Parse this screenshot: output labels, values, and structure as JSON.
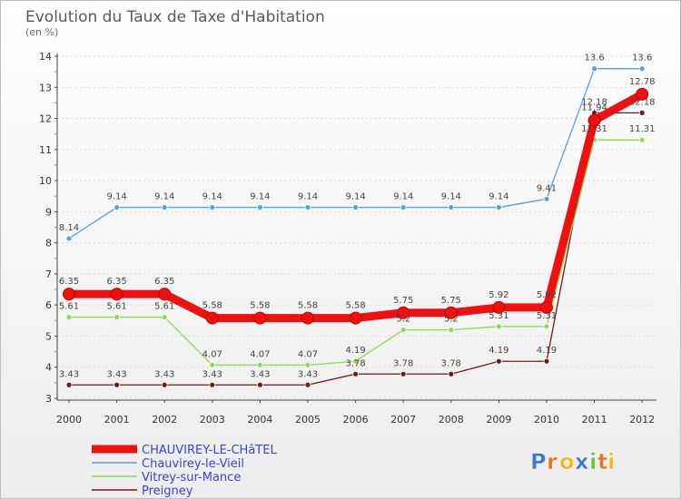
{
  "chart_data": {
    "type": "line",
    "title": "Evolution du Taux de Taxe d'Habitation",
    "ylabel": "(en %)",
    "xlabel": "",
    "ylim": [
      3,
      14
    ],
    "yticks": [
      "3",
      "4",
      "5",
      "6",
      "7",
      "8",
      "9",
      "10",
      "11",
      "12",
      "13",
      "14"
    ],
    "categories": [
      "2000",
      "2001",
      "2002",
      "2003",
      "2004",
      "2005",
      "2006",
      "2007",
      "2008",
      "2009",
      "2010",
      "2011",
      "2012"
    ],
    "series": [
      {
        "name": "Preigney",
        "color": "#6b1d1d",
        "values": [
          3.43,
          3.43,
          3.43,
          3.43,
          3.43,
          3.43,
          3.78,
          3.78,
          3.78,
          4.19,
          4.19,
          12.18,
          12.18
        ],
        "labels": [
          "3.43",
          "3.43",
          "3.43",
          "3.43",
          "3.43",
          "3.43",
          "3.78",
          "3.78",
          "3.78",
          "4.19",
          "4.19",
          "12.18",
          "12.18"
        ]
      },
      {
        "name": "Vitrey-sur-Mance",
        "color": "#8fd65a",
        "values": [
          5.61,
          5.61,
          5.61,
          4.07,
          4.07,
          4.07,
          4.19,
          5.2,
          5.2,
          5.31,
          5.31,
          11.31,
          11.31
        ],
        "labels": [
          "5.61",
          "5.61",
          "5.61",
          "4.07",
          "4.07",
          "4.07",
          "4.19",
          "5.2",
          "5.2",
          "5.31",
          "5.31",
          "11.31",
          "11.31"
        ]
      },
      {
        "name": "Chauvirey-le-Vieil",
        "color": "#5aa0d8",
        "values": [
          8.14,
          9.14,
          9.14,
          9.14,
          9.14,
          9.14,
          9.14,
          9.14,
          9.14,
          9.14,
          9.41,
          13.6,
          13.6
        ],
        "labels": [
          "8.14",
          "9.14",
          "9.14",
          "9.14",
          "9.14",
          "9.14",
          "9.14",
          "9.14",
          "9.14",
          "9.14",
          "9.41",
          "13.6",
          "13.6"
        ]
      },
      {
        "name": "CHAUVIREY-LE-CHâTEL",
        "color": "#ee1111",
        "values": [
          6.35,
          6.35,
          6.35,
          5.58,
          5.58,
          5.58,
          5.58,
          5.75,
          5.75,
          5.92,
          5.92,
          11.94,
          12.78
        ],
        "labels": [
          "6.35",
          "6.35",
          "6.35",
          "5.58",
          "5.58",
          "5.58",
          "5.58",
          "5.75",
          "5.75",
          "5.92",
          "5.92",
          "11.94",
          "12.78"
        ],
        "emphasis": true
      }
    ],
    "legend": {
      "position": "bottom-left",
      "entries": [
        "CHAUVIREY-LE-CHâTEL",
        "Chauvirey-le-Vieil",
        "Vitrey-sur-Mance",
        "Preigney"
      ]
    }
  },
  "logo": {
    "letters": [
      "P",
      "r",
      "o",
      "x",
      "i",
      "t",
      "i"
    ],
    "colors": [
      "#3a78d4",
      "#e8742a",
      "#f0b81e",
      "#3a78d4",
      "#6fbf3a",
      "#e8742a",
      "#f0b81e"
    ]
  }
}
